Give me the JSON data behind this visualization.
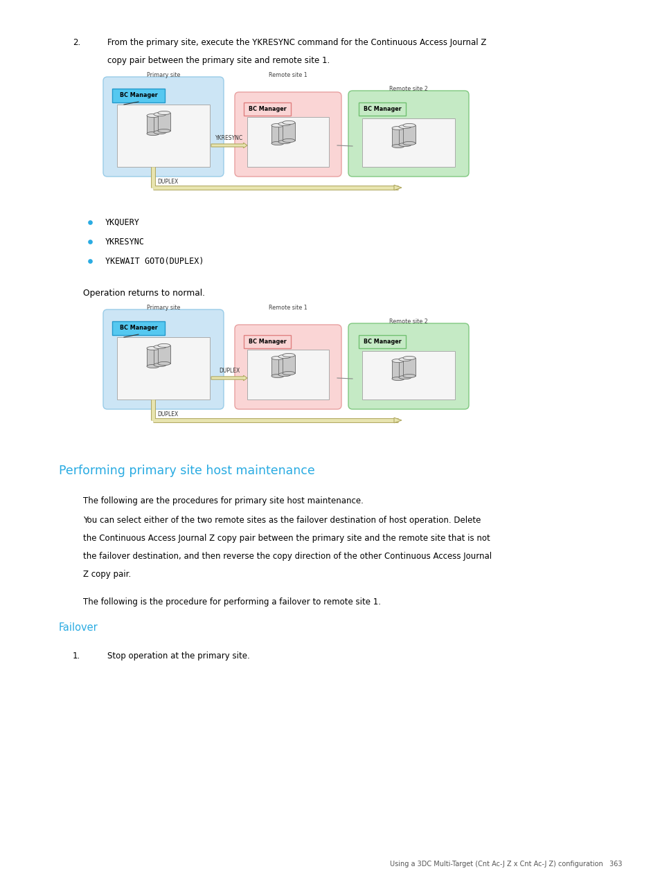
{
  "bg_color": "#ffffff",
  "page_width": 9.54,
  "page_height": 12.71,
  "text_color": "#000000",
  "cyan_color": "#29abe2",
  "step2_line1a": "From the primary site, execute the ",
  "step2_code": "YKRESYNC",
  "step2_line1b": " command for the Continuous Access Journal Z",
  "step2_line2": "copy pair between the primary site and remote site 1.",
  "bullet_items": [
    "YKQUERY",
    "YKRESYNC",
    "YKEWAIT GOTO(DUPLEX)"
  ],
  "op_normal_text": "Operation returns to normal.",
  "section_title": "Performing primary site host maintenance",
  "para1": "The following are the procedures for primary site host maintenance.",
  "para2a": "You can select either of the two remote sites as the failover destination of host operation. Delete",
  "para2b": "the Continuous Access Journal Z copy pair between the primary site and the remote site that is not",
  "para2c": "the failover destination, and then reverse the copy direction of the other Continuous Access Journal",
  "para2d": "Z copy pair.",
  "para3": "The following is the procedure for performing a failover to remote site 1.",
  "failover_title": "Failover",
  "step1_text": "Stop operation at the primary site.",
  "footer_text": "Using a 3DC Multi-Target (Cnt Ac-J Z x Cnt Ac-J Z) configuration   363",
  "diag1_label_arrow": "YKRESYNC",
  "diag2_label_arrow": "DUPLEX",
  "duplex_label": "DUPLEX"
}
